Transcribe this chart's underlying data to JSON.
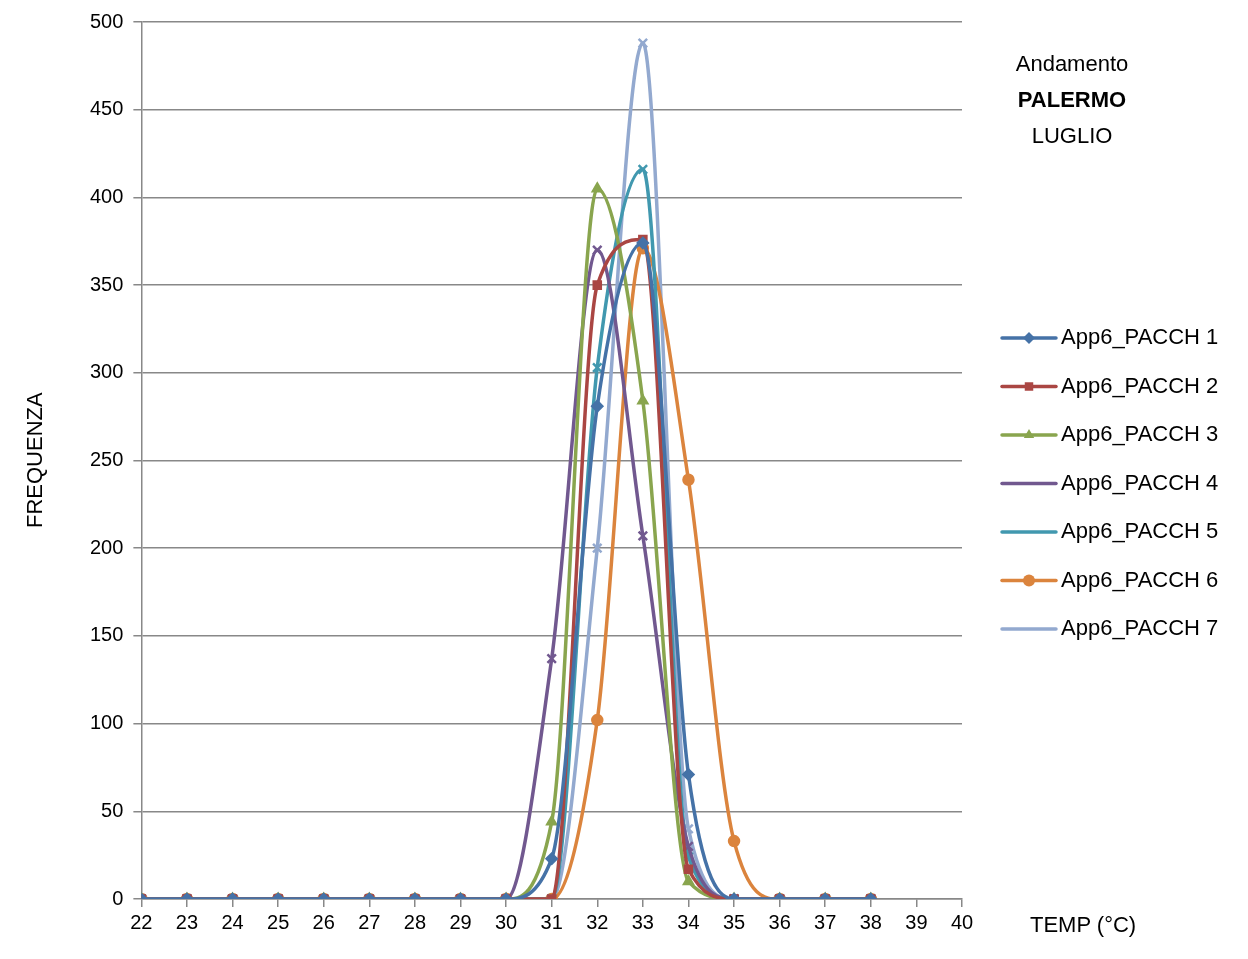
{
  "chart_data": {
    "type": "line",
    "xlabel": "TEMP (°C)",
    "ylabel": "FREQUENZA",
    "annotations": [
      "Andamento",
      "PALERMO",
      "LUGLIO"
    ],
    "x": [
      22,
      23,
      24,
      25,
      26,
      27,
      28,
      29,
      30,
      31,
      32,
      33,
      34,
      35,
      36,
      37,
      38
    ],
    "xlim": [
      22,
      40
    ],
    "xticks": [
      22,
      23,
      24,
      25,
      26,
      27,
      28,
      29,
      30,
      31,
      32,
      33,
      34,
      35,
      36,
      37,
      38,
      39,
      40
    ],
    "ylim": [
      0,
      500
    ],
    "yticks": [
      0,
      50,
      100,
      150,
      200,
      250,
      300,
      350,
      400,
      450,
      500
    ],
    "grid": "y",
    "legend": "right",
    "line_style": "solid",
    "series": [
      {
        "name": "App6_PACCH 1",
        "color": "#4572a7",
        "marker": "diamond",
        "values": [
          0,
          0,
          0,
          0,
          0,
          0,
          0,
          0,
          0,
          23,
          281,
          374,
          71,
          0,
          0,
          0,
          0
        ]
      },
      {
        "name": "App6_PACCH 2",
        "color": "#aa4643",
        "marker": "square",
        "values": [
          0,
          0,
          0,
          0,
          0,
          0,
          0,
          0,
          0,
          0,
          350,
          376,
          17,
          0,
          0,
          0,
          0
        ]
      },
      {
        "name": "App6_PACCH 3",
        "color": "#89a54e",
        "marker": "triangle",
        "values": [
          0,
          0,
          0,
          0,
          0,
          0,
          0,
          0,
          0,
          44,
          405,
          284,
          10,
          0,
          0,
          0,
          0
        ]
      },
      {
        "name": "App6_PACCH 4",
        "color": "#71588f",
        "marker": "cross",
        "values": [
          0,
          0,
          0,
          0,
          0,
          0,
          0,
          0,
          0,
          137,
          370,
          207,
          30,
          0,
          0,
          0,
          0
        ]
      },
      {
        "name": "App6_PACCH 5",
        "color": "#4198af",
        "marker": "cross",
        "values": [
          0,
          0,
          0,
          0,
          0,
          0,
          0,
          0,
          0,
          0,
          303,
          416,
          24,
          0,
          0,
          0,
          0
        ]
      },
      {
        "name": "App6_PACCH 6",
        "color": "#db843d",
        "marker": "circle",
        "values": [
          0,
          0,
          0,
          0,
          0,
          0,
          0,
          0,
          0,
          0,
          102,
          371,
          239,
          33,
          0,
          0,
          0
        ]
      },
      {
        "name": "App6_PACCH 7",
        "color": "#93a9cf",
        "marker": "cross",
        "values": [
          0,
          0,
          0,
          0,
          0,
          0,
          0,
          0,
          0,
          0,
          200,
          488,
          40,
          0,
          0,
          0,
          0
        ]
      }
    ]
  }
}
